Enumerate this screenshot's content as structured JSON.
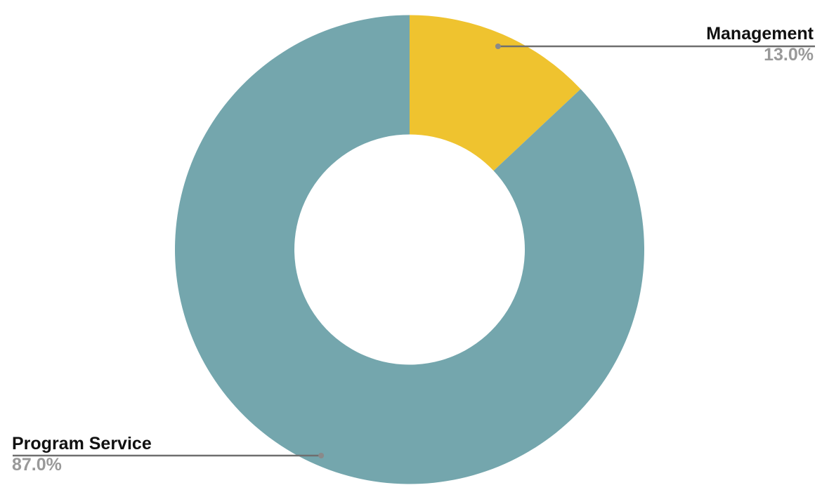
{
  "page": {
    "background_color": "#ffffff"
  },
  "chart_data": {
    "type": "pie",
    "subtype": "donut",
    "title": "",
    "categories": [
      "Management",
      "Program Service"
    ],
    "values": [
      13.0,
      87.0
    ],
    "value_labels": [
      "13.0%",
      "87.0%"
    ],
    "unit": "%",
    "colors": [
      "#EFC32F",
      "#74A6AD"
    ],
    "start_angle_deg": 0,
    "direction": "clockwise",
    "inner_radius_ratio": 0.49,
    "legend": "none",
    "grid": "off",
    "annotations": "Each slice has a callout: horizontal leader line with a dot on the slice; slice name in bold black above the line, percentage in bold gray below the line. Management callout at top right, Program Service callout at bottom left.",
    "style": {
      "connector_line_color": "#6E6E6E",
      "connector_dot_color": "#8A8A8A",
      "name_text_color": "#111111",
      "pct_text_color": "#999999"
    }
  }
}
